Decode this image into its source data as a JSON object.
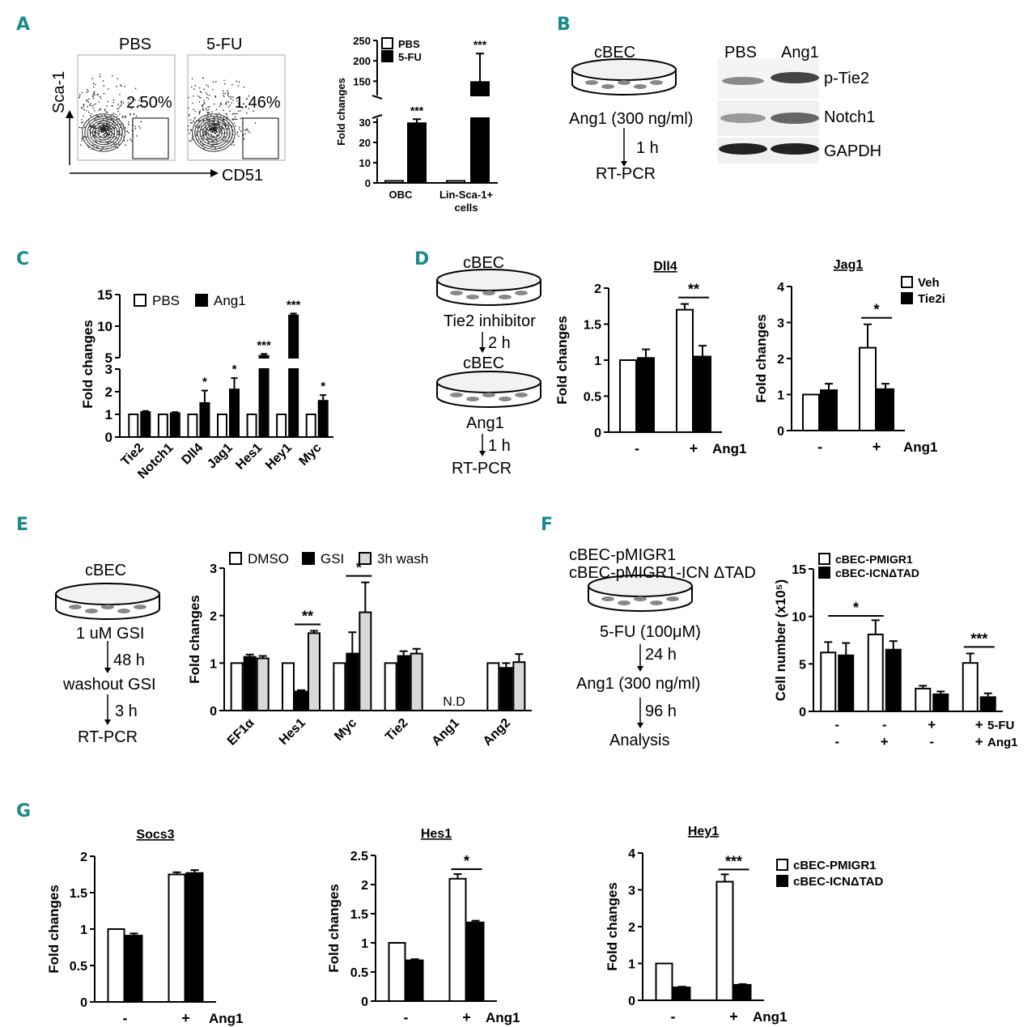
{
  "panels": {
    "A": {
      "label": "A",
      "flow": {
        "pbs": "PBS",
        "fu": "5-FU",
        "pct_pbs": "2.50%",
        "pct_fu": "1.46%",
        "y_axis": "Sca-1",
        "x_axis": "CD51"
      }
    },
    "B": {
      "label": "B",
      "cell": "cBEC",
      "treat": "Ang1 (300 ng/ml)",
      "time": "1 h",
      "assay": "RT-PCR",
      "blot": {
        "col1": "PBS",
        "col2": "Ang1",
        "rows": [
          "p-Tie2",
          "Notch1",
          "GAPDH"
        ]
      }
    },
    "C": {
      "label": "C"
    },
    "D": {
      "label": "D",
      "steps": [
        "cBEC",
        "Tie2 inhibitor",
        "2 h",
        "cBEC",
        "Ang1",
        "1 h",
        "RT-PCR"
      ]
    },
    "E": {
      "label": "E",
      "steps": [
        "cBEC",
        "1 uM GSI",
        "48 h",
        "washout GSI",
        "3 h",
        "RT-PCR"
      ]
    },
    "F": {
      "label": "F",
      "steps": [
        "cBEC-pMIGR1",
        "cBEC-pMIGR1-ICN ΔTAD",
        "5-FU (100μM)",
        "24 h",
        "Ang1 (300 ng/ml)",
        "96 h",
        "Analysis"
      ]
    },
    "G": {
      "label": "G"
    }
  },
  "colors": {
    "panel_label": "#1b8a8c",
    "fill_white": "#ffffff",
    "fill_black": "#000000",
    "fill_gray": "#d8d8d8"
  },
  "chart_data": [
    {
      "id": "A-bar",
      "type": "bar",
      "title": "",
      "ylabel": "Fold changes",
      "categories": [
        "OBC",
        "Lin-Sca-1+ cells"
      ],
      "series": [
        {
          "name": "PBS",
          "values": [
            1,
            1
          ]
        },
        {
          "name": "5-FU",
          "values": [
            29.5,
            148
          ]
        }
      ],
      "errors": [
        [
          0,
          0
        ],
        [
          2,
          70
        ]
      ],
      "significance": [
        "***",
        "***"
      ],
      "yticks": [
        0,
        10,
        20,
        30,
        150,
        200,
        250
      ],
      "broken_axis": [
        [
          0,
          32
        ],
        [
          115,
          250
        ]
      ]
    },
    {
      "id": "C",
      "type": "bar",
      "title": "",
      "ylabel": "Fold changes",
      "categories": [
        "Tie2",
        "Notch1",
        "Dll4",
        "Jag1",
        "Hes1",
        "Hey1",
        "Myc"
      ],
      "series": [
        {
          "name": "PBS",
          "values": [
            1,
            1,
            1,
            1,
            1,
            1,
            1
          ]
        },
        {
          "name": "Ang1",
          "values": [
            1.1,
            1.05,
            1.5,
            2.1,
            5.3,
            11.7,
            1.6
          ]
        }
      ],
      "errors": [
        [
          0,
          0,
          0,
          0,
          0,
          0,
          0
        ],
        [
          0.05,
          0.05,
          0.55,
          0.5,
          0.3,
          0.3,
          0.25
        ]
      ],
      "significance": [
        "",
        "",
        "*",
        "*",
        "***",
        "***",
        "*"
      ],
      "yticks": [
        0,
        1,
        2,
        3,
        5,
        10,
        15
      ],
      "broken_axis": [
        [
          0,
          3
        ],
        [
          5,
          15
        ]
      ]
    },
    {
      "id": "D-Dll4",
      "type": "bar",
      "title": "Dll4",
      "ylabel": "Fold changes",
      "categories": [
        "-",
        "+"
      ],
      "xlabel": "Ang1",
      "series": [
        {
          "name": "Veh",
          "values": [
            1,
            1.7
          ]
        },
        {
          "name": "Tie2i",
          "values": [
            1.03,
            1.05
          ]
        }
      ],
      "errors": [
        [
          0,
          0.08
        ],
        [
          0.12,
          0.15
        ]
      ],
      "bracket": {
        "group": 1,
        "text": "**"
      },
      "ylim": [
        0,
        2
      ],
      "yticks": [
        0,
        0.5,
        1,
        1.5,
        2
      ]
    },
    {
      "id": "D-Jag1",
      "type": "bar",
      "title": "Jag1",
      "ylabel": "Fold changes",
      "categories": [
        "-",
        "+"
      ],
      "xlabel": "Ang1",
      "series": [
        {
          "name": "Veh",
          "values": [
            1,
            2.3
          ]
        },
        {
          "name": "Tie2i",
          "values": [
            1.12,
            1.15
          ]
        }
      ],
      "errors": [
        [
          0,
          0.65
        ],
        [
          0.18,
          0.15
        ]
      ],
      "bracket": {
        "group": 1,
        "text": "*"
      },
      "ylim": [
        0,
        4
      ],
      "yticks": [
        0,
        1,
        2,
        3,
        4
      ]
    },
    {
      "id": "E",
      "type": "bar",
      "title": "",
      "ylabel": "Fold changes",
      "categories": [
        "EF1α",
        "Hes1",
        "Myc",
        "Tie2",
        "Ang1",
        "Ang2"
      ],
      "series": [
        {
          "name": "DMSO",
          "values": [
            1,
            1,
            1,
            1,
            0,
            1
          ]
        },
        {
          "name": "GSI",
          "values": [
            1.13,
            0.4,
            1.2,
            1.15,
            0,
            0.9
          ]
        },
        {
          "name": "3h wash",
          "values": [
            1.1,
            1.63,
            2.07,
            1.2,
            0,
            1.02
          ]
        }
      ],
      "errors": [
        [
          0,
          0,
          0,
          0,
          0,
          0
        ],
        [
          0.05,
          0.03,
          0.45,
          0.1,
          0,
          0.1
        ],
        [
          0.05,
          0.05,
          0.63,
          0.1,
          0,
          0.17
        ]
      ],
      "annotations": [
        {
          "group": 1,
          "text": "**"
        },
        {
          "group": 2,
          "text": "*"
        },
        {
          "group": 4,
          "text": "N.D"
        }
      ],
      "ylim": [
        0,
        3
      ],
      "yticks": [
        0,
        1,
        2,
        3
      ]
    },
    {
      "id": "F",
      "type": "bar",
      "title": "",
      "ylabel": "Cell number (x10⁵)",
      "categories": [
        "- / -",
        "- / +",
        "+ / -",
        "+ / +"
      ],
      "row_labels": {
        "5-FU": [
          "-",
          "-",
          "+",
          "+"
        ],
        "Ang1": [
          "-",
          "+",
          "-",
          "+"
        ]
      },
      "series": [
        {
          "name": "cBEC-PMIGR1",
          "values": [
            6.2,
            8.1,
            2.4,
            5.1
          ]
        },
        {
          "name": "cBEC-ICNΔTAD",
          "values": [
            5.9,
            6.5,
            1.8,
            1.5
          ]
        }
      ],
      "errors": [
        [
          1.1,
          1.5,
          0.3,
          1.0
        ],
        [
          1.3,
          0.9,
          0.3,
          0.4
        ]
      ],
      "ylim": [
        0,
        15
      ],
      "yticks": [
        0,
        5,
        10,
        15
      ]
    },
    {
      "id": "G-Socs3",
      "type": "bar",
      "title": "Socs3",
      "ylabel": "Fold changes",
      "categories": [
        "-",
        "+"
      ],
      "xlabel": "Ang1",
      "series": [
        {
          "name": "cBEC-PMIGR1",
          "values": [
            1,
            1.75
          ]
        },
        {
          "name": "cBEC-ICNΔTAD",
          "values": [
            0.91,
            1.77
          ]
        }
      ],
      "errors": [
        [
          0,
          0.03
        ],
        [
          0.03,
          0.04
        ]
      ],
      "ylim": [
        0,
        2
      ],
      "yticks": [
        0,
        0.5,
        1,
        1.5,
        2
      ]
    },
    {
      "id": "G-Hes1",
      "type": "bar",
      "title": "Hes1",
      "ylabel": "Fold changes",
      "categories": [
        "-",
        "+"
      ],
      "xlabel": "Ang1",
      "series": [
        {
          "name": "cBEC-PMIGR1",
          "values": [
            1,
            2.1
          ]
        },
        {
          "name": "cBEC-ICNΔTAD",
          "values": [
            0.7,
            1.35
          ]
        }
      ],
      "errors": [
        [
          0,
          0.08
        ],
        [
          0.02,
          0.03
        ]
      ],
      "bracket": {
        "group": 1,
        "text": "*"
      },
      "ylim": [
        0,
        2.5
      ],
      "yticks": [
        0,
        0.5,
        1,
        1.5,
        2,
        2.5
      ]
    },
    {
      "id": "G-Hey1",
      "type": "bar",
      "title": "Hey1",
      "ylabel": "Fold changes",
      "categories": [
        "-",
        "+"
      ],
      "xlabel": "Ang1",
      "series": [
        {
          "name": "cBEC-PMIGR1",
          "values": [
            1,
            3.22
          ]
        },
        {
          "name": "cBEC-ICNΔTAD",
          "values": [
            0.35,
            0.42
          ]
        }
      ],
      "errors": [
        [
          0,
          0.2
        ],
        [
          0.02,
          0.02
        ]
      ],
      "bracket": {
        "group": 1,
        "text": "***"
      },
      "ylim": [
        0,
        4
      ],
      "yticks": [
        0,
        1,
        2,
        3,
        4
      ]
    }
  ]
}
